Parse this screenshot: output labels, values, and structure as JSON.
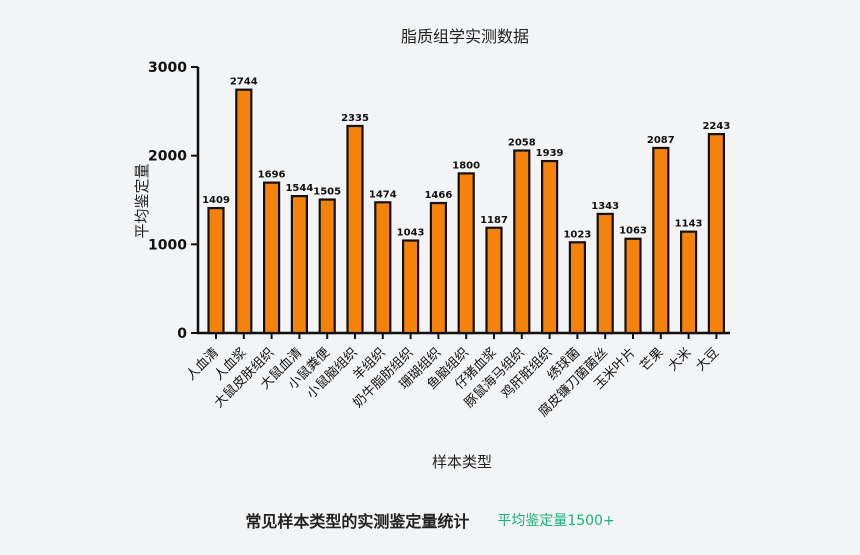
{
  "chart_data": {
    "type": "bar",
    "title": "脂质组学实测数据",
    "xlabel": "样本类型",
    "ylabel": "平均鉴定量",
    "ylim": [
      0,
      3000
    ],
    "yticks": [
      "0",
      "1000",
      "2000",
      "3000"
    ],
    "grid": false,
    "bar_color": "#f5820a",
    "bar_edge_color": "#111111",
    "categories": [
      "人血清",
      "人血浆",
      "大鼠皮肤组织",
      "大鼠血清",
      "小鼠粪便",
      "小鼠脑组织",
      "羊组织",
      "奶牛脂肪组织",
      "珊瑚组织",
      "鱼脑组织",
      "仔猪血浆",
      "豚鼠海马组织",
      "鸡肝脏组织",
      "绣球菌",
      "腐皮镰刀菌菌丝",
      "玉米叶片",
      "芒果",
      "大米",
      "大豆"
    ],
    "values": [
      1409,
      2744,
      1696,
      1544,
      1505,
      2335,
      1474,
      1043,
      1466,
      1800,
      1187,
      2058,
      1939,
      1023,
      1343,
      1063,
      2087,
      1143,
      2243
    ],
    "value_labels": [
      "1409",
      "2744",
      "1696",
      "1544",
      "1505",
      "2335",
      "1474",
      "1043",
      "1466",
      "1800",
      "1187",
      "2058",
      "1939",
      "1023",
      "1343",
      "1063",
      "2087",
      "1143",
      "2243"
    ]
  },
  "caption": {
    "main": "常见样本类型的实测鉴定量统计",
    "sub": "平均鉴定量1500+"
  }
}
